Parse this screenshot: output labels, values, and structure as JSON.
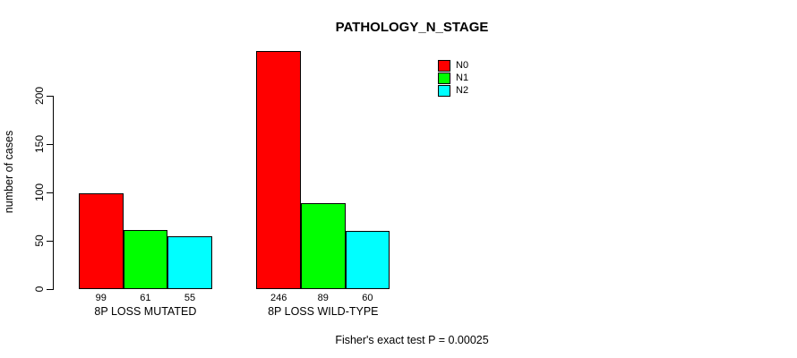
{
  "chart_data": {
    "type": "bar",
    "title": "PATHOLOGY_N_STAGE",
    "categories": [
      "8P LOSS MUTATED",
      "8P LOSS WILD-TYPE"
    ],
    "series": [
      {
        "name": "N0",
        "color": "#FF0000",
        "values": [
          99,
          246
        ]
      },
      {
        "name": "N1",
        "color": "#00FF00",
        "values": [
          61,
          89
        ]
      },
      {
        "name": "N2",
        "color": "#00FFFF",
        "values": [
          55,
          60
        ]
      }
    ],
    "xlabel": "",
    "ylabel": "number of cases",
    "yticks": [
      0,
      50,
      100,
      150,
      200
    ],
    "ylim": [
      0,
      200
    ],
    "bar_value_labels_shown": true,
    "grid": false,
    "legend_position": "top-right",
    "bar_border_color": "#000000",
    "background_color": "#FFFFFF"
  },
  "footer": {
    "text": "Fisher's exact test P = 0.00025"
  }
}
